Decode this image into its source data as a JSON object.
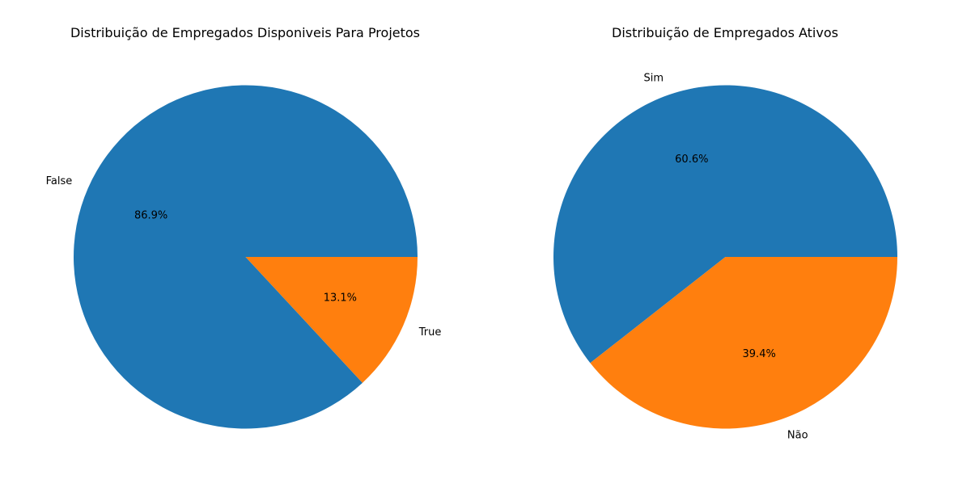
{
  "chart_data": [
    {
      "type": "pie",
      "title": "Distribuição de Empregados Disponiveis Para Projetos",
      "slices": [
        {
          "label": "False",
          "value": 86.9,
          "pct_label": "86.9%",
          "color": "#1f77b4"
        },
        {
          "label": "True",
          "value": 13.1,
          "pct_label": "13.1%",
          "color": "#ff7f0e"
        }
      ]
    },
    {
      "type": "pie",
      "title": "Distribuição de Empregados Ativos",
      "slices": [
        {
          "label": "Sim",
          "value": 60.6,
          "pct_label": "60.6%",
          "color": "#1f77b4"
        },
        {
          "label": "Não",
          "value": 39.4,
          "pct_label": "39.4%",
          "color": "#ff7f0e"
        }
      ]
    }
  ]
}
